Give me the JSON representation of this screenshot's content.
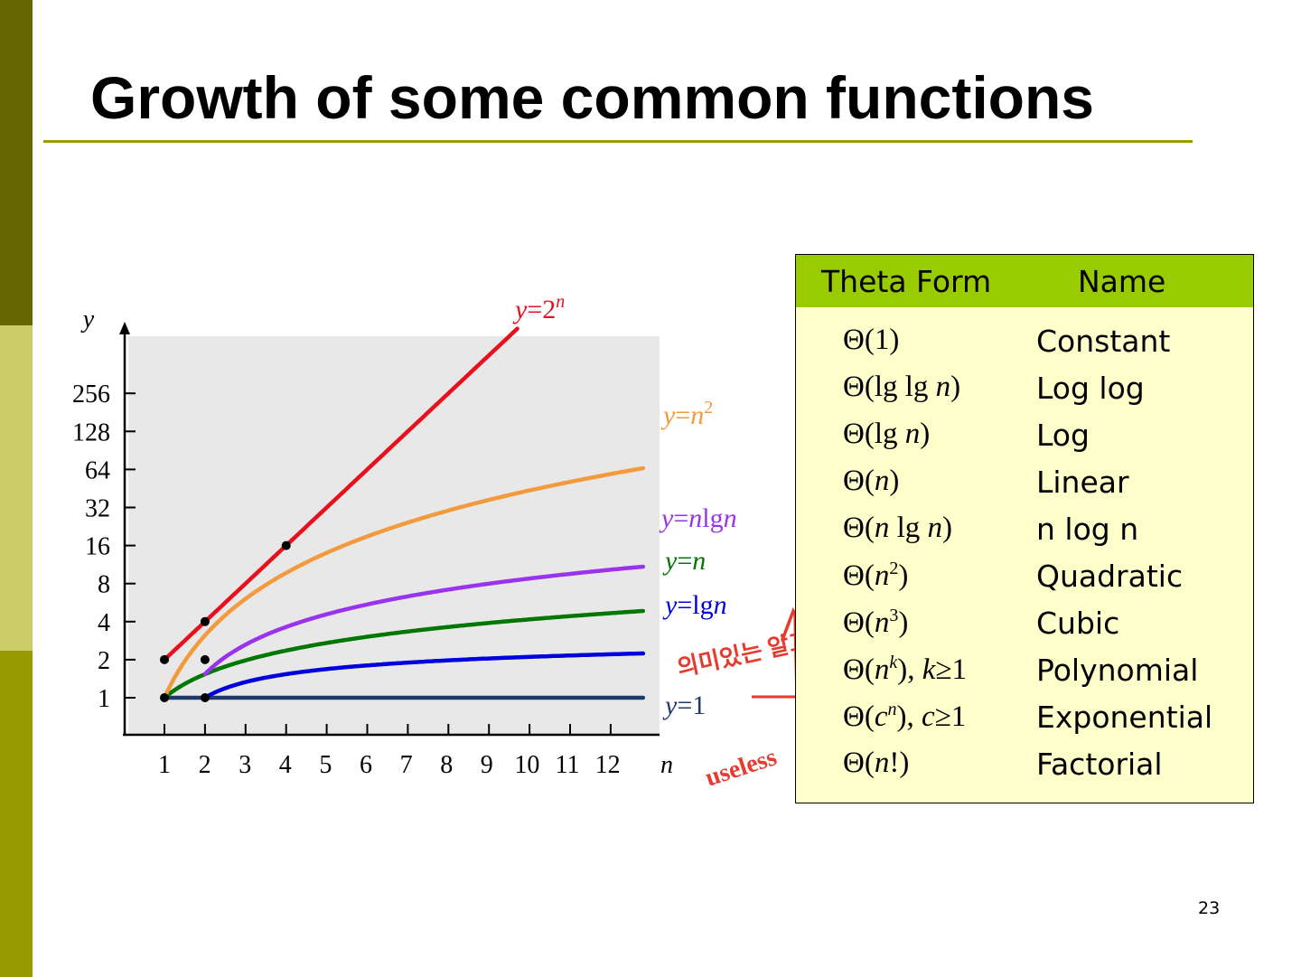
{
  "slide": {
    "title": "Growth of some common functions",
    "page_number": "23",
    "colors": {
      "accent": "#999900",
      "sidebar_dark": "#666600",
      "sidebar_light": "#cccc66",
      "table_header": "#99cc00",
      "table_body": "#ffffcc"
    }
  },
  "chart_data": {
    "type": "line",
    "title": "",
    "xlabel": "n",
    "ylabel": "y",
    "x_ticks": [
      "1",
      "2",
      "3",
      "4",
      "5",
      "6",
      "7",
      "8",
      "9",
      "10",
      "11",
      "12"
    ],
    "y_ticks": [
      "1",
      "2",
      "4",
      "8",
      "16",
      "32",
      "64",
      "128",
      "256"
    ],
    "y_scale": "log2",
    "series": [
      {
        "name": "y=1",
        "func": "const",
        "color": "#1f3a68",
        "x_start": 1
      },
      {
        "name": "y=lgn",
        "func": "lgn",
        "color": "#0000dd",
        "x_start": 2
      },
      {
        "name": "y=n",
        "func": "n",
        "color": "#007700",
        "x_start": 1
      },
      {
        "name": "y=nlgn",
        "func": "nlgn",
        "color": "#9933ee",
        "x_start": 2
      },
      {
        "name": "y=n2",
        "func": "n2",
        "color": "#f39a3c",
        "x_start": 1
      },
      {
        "name": "y=2n",
        "func": "2n",
        "color": "#e8101c",
        "x_start": 1
      }
    ],
    "series_labels": {
      "const": {
        "base": "y",
        "rest": "=1",
        "sup": ""
      },
      "lgn": {
        "base": "y",
        "rest": "=lgn",
        "sup": ""
      },
      "n": {
        "base": "y",
        "rest": "=n",
        "sup": ""
      },
      "nlgn": {
        "base": "y",
        "rest": "=nlgn",
        "sup": ""
      },
      "n2": {
        "base": "y",
        "rest": "=n",
        "sup": "2"
      },
      "2n": {
        "base": "y",
        "rest": "=2",
        "sup": "n"
      }
    },
    "points": [
      {
        "x": 1,
        "y": 1
      },
      {
        "x": 1,
        "y": 2
      },
      {
        "x": 2,
        "y": 1
      },
      {
        "x": 2,
        "y": 2
      },
      {
        "x": 2,
        "y": 4
      },
      {
        "x": 4,
        "y": 16
      }
    ],
    "annotations": {
      "handwritten_korean": "의미있는 알고리즘",
      "handwritten_useless": "useless"
    }
  },
  "table": {
    "header": {
      "theta": "Theta Form",
      "name": "Name"
    },
    "rows": [
      {
        "theta_html": "Θ(1)",
        "name": "Constant"
      },
      {
        "theta_html": "Θ(lg lg <i>n</i>)",
        "name": "Log log"
      },
      {
        "theta_html": "Θ(lg <i>n</i>)",
        "name": "Log"
      },
      {
        "theta_html": "Θ(<i>n</i>)",
        "name": "Linear"
      },
      {
        "theta_html": "Θ(<i>n</i> lg <i>n</i>)",
        "name": "n log n"
      },
      {
        "theta_html": "Θ(<i>n</i><sup>2</sup>)",
        "name": "Quadratic"
      },
      {
        "theta_html": "Θ(<i>n</i><sup>3</sup>)",
        "name": "Cubic"
      },
      {
        "theta_html": "Θ(<i>n<sup>k</sup></i>), <i>k</i>≥1",
        "name": "Polynomial"
      },
      {
        "theta_html": "Θ(<i>c<sup>n</sup></i>), <i>c</i>≥1",
        "name": "Exponential"
      },
      {
        "theta_html": "Θ(<i>n</i>!)",
        "name": "Factorial"
      }
    ]
  }
}
